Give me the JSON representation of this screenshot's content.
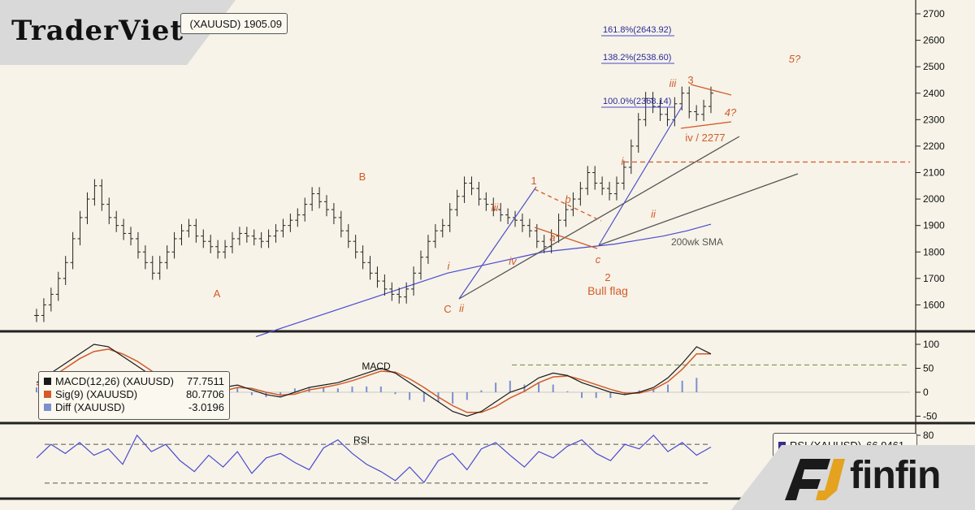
{
  "brand": {
    "left": "TraderViet",
    "right": "finfin"
  },
  "price_legend": {
    "text": "(XAUUSD) 1905.09"
  },
  "chart_data": [
    {
      "type": "line",
      "panel": "price",
      "ylim": [
        1500,
        2700
      ],
      "yticks": [
        "2700",
        "2600",
        "2500",
        "2400",
        "2300",
        "2200",
        "2100",
        "2000",
        "1900",
        "1800",
        "1700",
        "1600"
      ],
      "fib_levels": [
        "161.8%(2643.92)",
        "138.2%(2538.60)",
        "100.0%(2368.14)"
      ],
      "wave_labels": [
        "A",
        "B",
        "C",
        "1",
        "2",
        "3",
        "4?",
        "5?",
        "i",
        "ii",
        "iii",
        "iv",
        "a",
        "b",
        "c",
        "i",
        "ii",
        "iii",
        "iv / 2277",
        "i",
        "ii",
        "iii",
        "iv"
      ],
      "annotations": [
        "Bull flag",
        "200wk SMA"
      ],
      "horizontal_level": 2140,
      "series": [
        {
          "values": [
            1560,
            1600,
            1640,
            1700,
            1760,
            1850,
            1930,
            2000,
            2050,
            1980,
            1930,
            1900,
            1870,
            1850,
            1800,
            1760,
            1720,
            1760,
            1800,
            1850,
            1880,
            1900,
            1860,
            1840,
            1820,
            1800,
            1820,
            1850,
            1870,
            1860,
            1850,
            1840,
            1860,
            1880,
            1900,
            1920,
            1940,
            1980,
            2020,
            1990,
            1960,
            1930,
            1880,
            1840,
            1800,
            1760,
            1720,
            1690,
            1660,
            1640,
            1630,
            1660,
            1720,
            1780,
            1840,
            1880,
            1900,
            1960,
            2010,
            2060,
            2040,
            2000,
            1980,
            1960,
            1940,
            1930,
            1920,
            1900,
            1880,
            1840,
            1820,
            1860,
            1920,
            1960,
            2000,
            2040,
            2100,
            2060,
            2040,
            2020,
            2060,
            2120,
            2200,
            2300,
            2380,
            2350,
            2320,
            2300,
            2360,
            2400,
            2330,
            2320,
            2350,
            2400
          ]
        }
      ],
      "sma_200wk": [
        1480,
        1510,
        1540,
        1570,
        1600,
        1630,
        1660,
        1690,
        1720,
        1740,
        1760,
        1780,
        1800,
        1810,
        1820,
        1830,
        1845,
        1860,
        1880,
        1905
      ]
    },
    {
      "type": "line",
      "panel": "macd",
      "ylim": [
        -60,
        110
      ],
      "yticks": [
        "100",
        "50",
        "0",
        "-50"
      ],
      "legend": [
        {
          "name": "MACD(12,26) (XAUUSD)",
          "value": "77.7511",
          "color": "#1a1a1a"
        },
        {
          "name": "Sig(9) (XAUUSD)",
          "value": "80.7706",
          "color": "#d25a2a"
        },
        {
          "name": "Diff (XAUUSD)",
          "value": "-3.0196",
          "color": "#7b8fcf"
        }
      ],
      "label": "MACD",
      "reference_level": 57,
      "series": [
        {
          "name": "MACD(12,26) (XAUUSD)",
          "values": [
            20,
            40,
            60,
            80,
            100,
            95,
            75,
            55,
            35,
            15,
            0,
            -10,
            -5,
            10,
            15,
            5,
            -5,
            -10,
            0,
            10,
            15,
            20,
            30,
            40,
            50,
            40,
            20,
            0,
            -20,
            -40,
            -50,
            -40,
            -20,
            0,
            10,
            30,
            40,
            35,
            20,
            10,
            0,
            -5,
            0,
            10,
            30,
            60,
            95,
            80
          ]
        },
        {
          "name": "Sig(9) (XAUUSD)",
          "values": [
            15,
            30,
            50,
            70,
            85,
            90,
            80,
            65,
            45,
            25,
            10,
            -2,
            -6,
            2,
            10,
            8,
            0,
            -6,
            -4,
            5,
            10,
            16,
            24,
            34,
            44,
            42,
            28,
            10,
            -10,
            -28,
            -42,
            -42,
            -30,
            -12,
            2,
            20,
            32,
            34,
            26,
            16,
            6,
            -2,
            -2,
            6,
            22,
            48,
            80,
            80
          ]
        }
      ]
    },
    {
      "type": "line",
      "panel": "rsi",
      "ylim": [
        20,
        85
      ],
      "yticks": [
        "80"
      ],
      "label": "RSI",
      "legend": [
        {
          "name": "RSI (XAUUSD)",
          "value": "66.9461",
          "color": "#3a2d8c"
        }
      ],
      "series": [
        {
          "name": "RSI (XAUUSD)",
          "values": [
            55,
            70,
            60,
            72,
            58,
            65,
            48,
            80,
            62,
            70,
            52,
            40,
            58,
            45,
            62,
            38,
            55,
            60,
            50,
            42,
            66,
            75,
            60,
            48,
            40,
            30,
            45,
            28,
            52,
            60,
            42,
            65,
            72,
            58,
            45,
            62,
            55,
            68,
            75,
            60,
            52,
            70,
            65,
            80,
            62,
            72,
            58,
            67
          ]
        }
      ]
    }
  ]
}
